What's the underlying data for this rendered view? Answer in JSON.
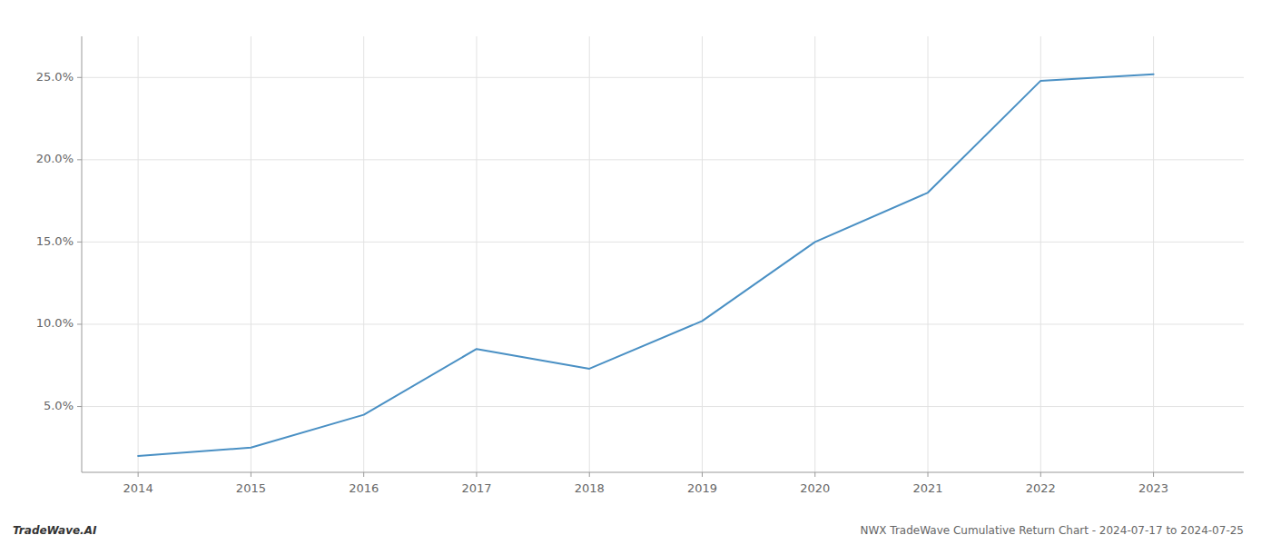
{
  "chart_data": {
    "type": "line",
    "title": "NWX TradeWave Cumulative Return Chart - 2024-07-17 to 2024-07-25",
    "annotations": [
      "TradeWave.AI"
    ],
    "x": [
      2014,
      2015,
      2016,
      2017,
      2018,
      2019,
      2020,
      2021,
      2022,
      2023
    ],
    "values": [
      2.0,
      2.5,
      4.5,
      8.5,
      7.3,
      10.2,
      15.0,
      18.0,
      24.8,
      25.2
    ],
    "color": "#4a90c4",
    "xlim": [
      2013.5,
      2023.8
    ],
    "ylim": [
      1.0,
      27.5
    ],
    "xticks": [
      2014,
      2015,
      2016,
      2017,
      2018,
      2019,
      2020,
      2021,
      2022,
      2023
    ],
    "yticks": [
      {
        "value": 5.0,
        "label": "5.0%"
      },
      {
        "value": 10.0,
        "label": "10.0%"
      },
      {
        "value": 15.0,
        "label": "15.0%"
      },
      {
        "value": 20.0,
        "label": "20.0%"
      },
      {
        "value": 25.0,
        "label": "25.0%"
      }
    ],
    "grid": true
  }
}
